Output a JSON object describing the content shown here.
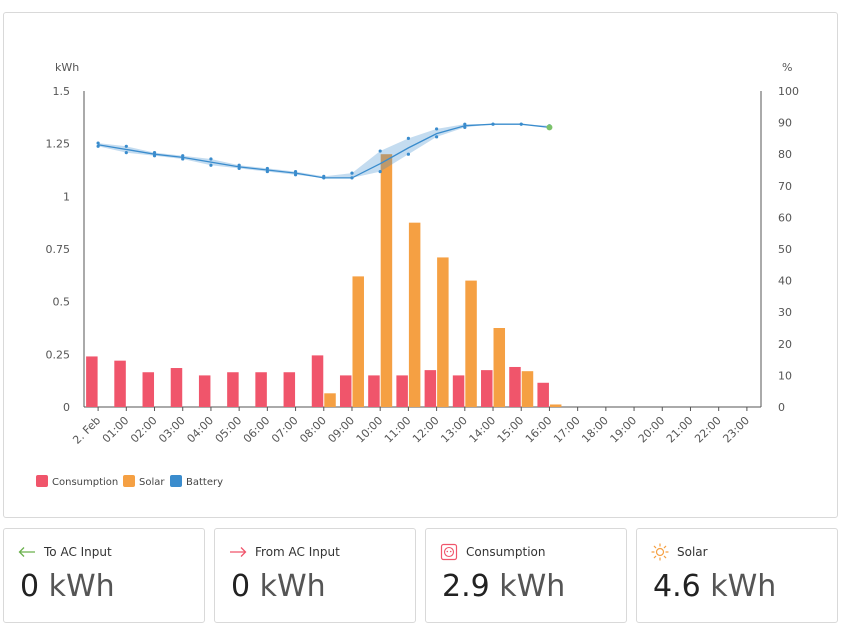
{
  "chart_data": {
    "type": "bar+line",
    "left_axis": {
      "label": "kWh",
      "ylim": [
        0,
        1.5
      ],
      "ticks": [
        0,
        0.25,
        0.5,
        0.75,
        1,
        1.25,
        1.5
      ],
      "tick_labels": [
        "0",
        "0.25",
        "0.5",
        "0.75",
        "1",
        "1.25",
        "1.5"
      ]
    },
    "right_axis": {
      "label": "%",
      "ylim": [
        0,
        100
      ],
      "ticks": [
        0,
        10,
        20,
        30,
        40,
        50,
        60,
        70,
        80,
        90,
        100
      ],
      "tick_labels": [
        "0",
        "10",
        "20",
        "30",
        "40",
        "50",
        "60",
        "70",
        "80",
        "90",
        "100"
      ]
    },
    "categories": [
      "2. Feb",
      "01:00",
      "02:00",
      "03:00",
      "04:00",
      "05:00",
      "06:00",
      "07:00",
      "08:00",
      "09:00",
      "10:00",
      "11:00",
      "12:00",
      "13:00",
      "14:00",
      "15:00",
      "16:00",
      "17:00",
      "18:00",
      "19:00",
      "20:00",
      "21:00",
      "22:00",
      "23:00"
    ],
    "series": [
      {
        "name": "Consumption",
        "axis": "left",
        "kind": "bar",
        "color": "#f0556b",
        "values": [
          0.24,
          0.22,
          0.165,
          0.185,
          0.15,
          0.165,
          0.165,
          0.165,
          0.245,
          0.15,
          0.15,
          0.15,
          0.175,
          0.15,
          0.175,
          0.19,
          0.115,
          null,
          null,
          null,
          null,
          null,
          null,
          null
        ]
      },
      {
        "name": "Solar",
        "axis": "left",
        "kind": "bar",
        "color": "#f5a043",
        "values": [
          0,
          0,
          0,
          0,
          0,
          0,
          0,
          0,
          0.065,
          0.62,
          1.2,
          0.875,
          0.71,
          0.6,
          0.375,
          0.17,
          0.012,
          null,
          null,
          null,
          null,
          null,
          null,
          null
        ]
      },
      {
        "name": "Battery",
        "axis": "right",
        "kind": "line",
        "color": "#3a8ccd",
        "values": [
          83,
          81.5,
          80,
          79,
          77.5,
          76,
          75,
          74,
          72.5,
          72.5,
          77,
          82,
          86.5,
          89,
          89.5,
          89.5,
          88.5,
          null,
          null,
          null,
          null,
          null,
          null,
          null
        ],
        "min": [
          82.5,
          80.5,
          79.5,
          78.5,
          76.5,
          75.5,
          74.5,
          73.5,
          72.5,
          72.5,
          74.5,
          80,
          85.5,
          88.5,
          89.5,
          89.5,
          88.5,
          null,
          null,
          null,
          null,
          null,
          null,
          null
        ],
        "max": [
          83.5,
          82.5,
          80.5,
          79.5,
          78.5,
          76.5,
          75.5,
          74.5,
          73,
          74,
          81,
          85,
          88,
          89.5,
          89.5,
          89.5,
          89,
          null,
          null,
          null,
          null,
          null,
          null,
          null
        ]
      }
    ],
    "legend": [
      "Consumption",
      "Solar",
      "Battery"
    ],
    "legend_position": "bottom-left"
  },
  "stats": [
    {
      "label": "To AC Input",
      "value": "0",
      "unit": "kWh",
      "icon": "arrow-left-icon",
      "icon_color": "#6ab04c"
    },
    {
      "label": "From AC Input",
      "value": "0",
      "unit": "kWh",
      "icon": "arrow-right-icon",
      "icon_color": "#f0556b"
    },
    {
      "label": "Consumption",
      "value": "2.9",
      "unit": "kWh",
      "icon": "outlet-icon",
      "icon_color": "#f0556b"
    },
    {
      "label": "Solar",
      "value": "4.6",
      "unit": "kWh",
      "icon": "sun-icon",
      "icon_color": "#f5a043"
    }
  ]
}
